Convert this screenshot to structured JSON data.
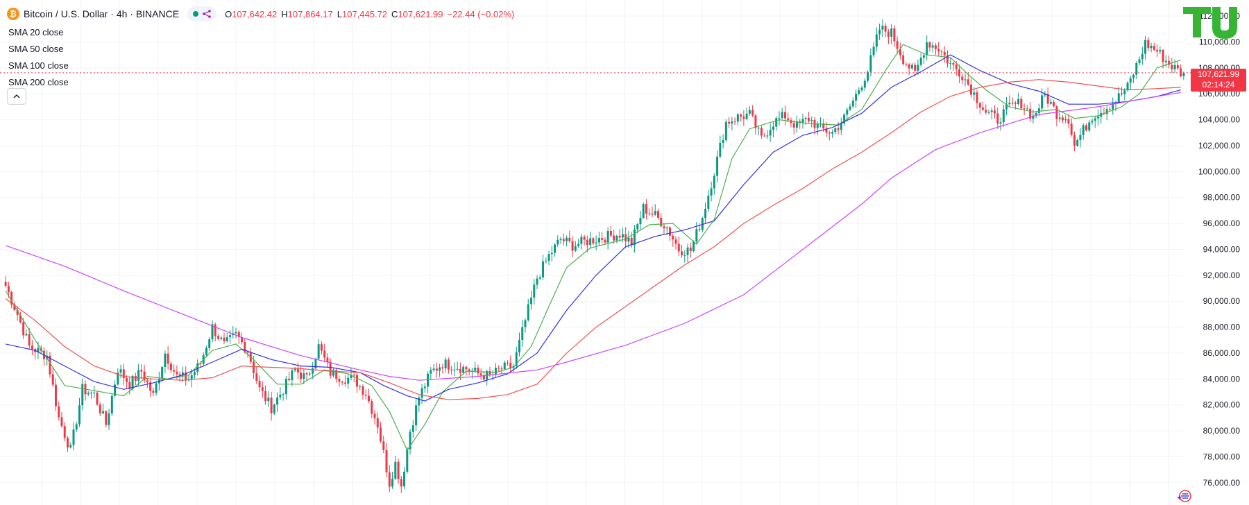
{
  "header": {
    "coin_icon_glyph": "₿",
    "symbol_title": "Bitcoin / U.S. Dollar · 4h · BINANCE",
    "ohlc": [
      {
        "key": "O",
        "value": "107,642.42"
      },
      {
        "key": "H",
        "value": "107,864.17"
      },
      {
        "key": "L",
        "value": "107,445.72"
      },
      {
        "key": "C",
        "value": "107,621.99"
      },
      {
        "key": "",
        "value": "−22.44 (−0.02%)"
      }
    ]
  },
  "indicators": [
    "SMA 20 close",
    "SMA 50 close",
    "SMA 100 close",
    "SMA 200 close"
  ],
  "last_price": {
    "value": "107,621.99",
    "countdown": "02:14:24"
  },
  "colors": {
    "up": "#089981",
    "down": "#f23645",
    "sma20": "#4caf50",
    "sma50": "#3030e8",
    "sma100": "#f05050",
    "sma200": "#cc44ff",
    "grid": "#f0f3fa",
    "logo": "#36b535"
  },
  "chart_data": {
    "type": "candlestick",
    "symbol": "BTCUSD",
    "interval": "4h",
    "y_axis": {
      "ticks": [
        76000,
        78000,
        80000,
        82000,
        84000,
        86000,
        88000,
        90000,
        92000,
        94000,
        96000,
        98000,
        100000,
        102000,
        104000,
        106000,
        108000,
        110000,
        112000
      ],
      "tick_labels": [
        "76,000.00",
        "78,000.00",
        "80,000.00",
        "82,000.00",
        "84,000.00",
        "86,000.00",
        "88,000.00",
        "90,000.00",
        "92,000.00",
        "94,000.00",
        "96,000.00",
        "98,000.00",
        "100,000.00",
        "102,000.00",
        "104,000.00",
        "106,000.00",
        "108,000.00",
        "110,000.00",
        "112,000.00"
      ],
      "range": [
        74600,
        112700
      ]
    },
    "grid": true,
    "close_path_anchors": [
      [
        0,
        91200
      ],
      [
        4,
        89000
      ],
      [
        8,
        86500
      ],
      [
        14,
        85800
      ],
      [
        18,
        81000
      ],
      [
        22,
        78500
      ],
      [
        26,
        83200
      ],
      [
        30,
        82800
      ],
      [
        34,
        80500
      ],
      [
        38,
        84800
      ],
      [
        42,
        83600
      ],
      [
        46,
        84600
      ],
      [
        50,
        82700
      ],
      [
        54,
        86000
      ],
      [
        58,
        84200
      ],
      [
        62,
        84000
      ],
      [
        66,
        85200
      ],
      [
        70,
        88000
      ],
      [
        74,
        86600
      ],
      [
        78,
        87400
      ],
      [
        82,
        86200
      ],
      [
        86,
        83200
      ],
      [
        90,
        81800
      ],
      [
        94,
        83200
      ],
      [
        98,
        84700
      ],
      [
        102,
        84000
      ],
      [
        106,
        86500
      ],
      [
        110,
        84500
      ],
      [
        114,
        84100
      ],
      [
        118,
        84000
      ],
      [
        122,
        82900
      ],
      [
        126,
        80500
      ],
      [
        130,
        76000
      ],
      [
        132,
        77500
      ],
      [
        134,
        75800
      ],
      [
        137,
        80000
      ],
      [
        140,
        82600
      ],
      [
        144,
        84500
      ],
      [
        148,
        85200
      ],
      [
        152,
        85000
      ],
      [
        156,
        84800
      ],
      [
        160,
        84400
      ],
      [
        164,
        84200
      ],
      [
        168,
        84800
      ],
      [
        172,
        85000
      ],
      [
        176,
        88500
      ],
      [
        180,
        91800
      ],
      [
        184,
        93500
      ],
      [
        188,
        94800
      ],
      [
        192,
        94300
      ],
      [
        196,
        94600
      ],
      [
        200,
        94800
      ],
      [
        204,
        95000
      ],
      [
        208,
        95200
      ],
      [
        212,
        94500
      ],
      [
        216,
        97200
      ],
      [
        220,
        96600
      ],
      [
        224,
        95700
      ],
      [
        228,
        94000
      ],
      [
        232,
        93900
      ],
      [
        236,
        96500
      ],
      [
        240,
        100000
      ],
      [
        244,
        103800
      ],
      [
        248,
        104200
      ],
      [
        252,
        104400
      ],
      [
        256,
        102500
      ],
      [
        260,
        103800
      ],
      [
        264,
        104300
      ],
      [
        268,
        103500
      ],
      [
        272,
        104100
      ],
      [
        276,
        103300
      ],
      [
        280,
        103000
      ],
      [
        284,
        104100
      ],
      [
        288,
        105900
      ],
      [
        292,
        107800
      ],
      [
        296,
        111000
      ],
      [
        300,
        110700
      ],
      [
        304,
        108700
      ],
      [
        308,
        107500
      ],
      [
        312,
        110000
      ],
      [
        316,
        109500
      ],
      [
        320,
        108300
      ],
      [
        324,
        107500
      ],
      [
        328,
        106000
      ],
      [
        332,
        104600
      ],
      [
        336,
        104000
      ],
      [
        340,
        105000
      ],
      [
        344,
        105300
      ],
      [
        348,
        104200
      ],
      [
        352,
        105900
      ],
      [
        356,
        104500
      ],
      [
        360,
        104100
      ],
      [
        362,
        102000
      ],
      [
        364,
        102800
      ],
      [
        368,
        104300
      ],
      [
        372,
        104800
      ],
      [
        376,
        105500
      ],
      [
        380,
        106500
      ],
      [
        384,
        108700
      ],
      [
        386,
        109900
      ],
      [
        390,
        109300
      ],
      [
        394,
        108300
      ],
      [
        398,
        107622
      ]
    ],
    "sma20_anchors": [
      [
        0,
        90800
      ],
      [
        10,
        87000
      ],
      [
        20,
        83500
      ],
      [
        30,
        83100
      ],
      [
        40,
        82700
      ],
      [
        48,
        84200
      ],
      [
        55,
        84000
      ],
      [
        62,
        84300
      ],
      [
        70,
        86200
      ],
      [
        78,
        86700
      ],
      [
        84,
        85500
      ],
      [
        92,
        83600
      ],
      [
        100,
        83600
      ],
      [
        108,
        84700
      ],
      [
        116,
        84400
      ],
      [
        124,
        83500
      ],
      [
        130,
        81500
      ],
      [
        136,
        78500
      ],
      [
        142,
        80500
      ],
      [
        148,
        83000
      ],
      [
        156,
        84600
      ],
      [
        166,
        84500
      ],
      [
        172,
        84900
      ],
      [
        178,
        86500
      ],
      [
        184,
        89600
      ],
      [
        190,
        92600
      ],
      [
        198,
        94100
      ],
      [
        210,
        94800
      ],
      [
        218,
        95900
      ],
      [
        226,
        96000
      ],
      [
        234,
        94400
      ],
      [
        240,
        96300
      ],
      [
        246,
        101000
      ],
      [
        252,
        103300
      ],
      [
        262,
        104000
      ],
      [
        272,
        103700
      ],
      [
        282,
        103600
      ],
      [
        290,
        104800
      ],
      [
        298,
        107800
      ],
      [
        304,
        109800
      ],
      [
        312,
        109000
      ],
      [
        320,
        108800
      ],
      [
        326,
        107500
      ],
      [
        332,
        106300
      ],
      [
        340,
        105000
      ],
      [
        348,
        104600
      ],
      [
        356,
        104800
      ],
      [
        362,
        104100
      ],
      [
        370,
        104300
      ],
      [
        378,
        105000
      ],
      [
        384,
        106000
      ],
      [
        390,
        108000
      ],
      [
        398,
        108600
      ]
    ],
    "sma50_anchors": [
      [
        0,
        86700
      ],
      [
        10,
        86200
      ],
      [
        20,
        85000
      ],
      [
        30,
        83800
      ],
      [
        40,
        83200
      ],
      [
        50,
        83700
      ],
      [
        60,
        84300
      ],
      [
        70,
        85300
      ],
      [
        80,
        86300
      ],
      [
        90,
        85500
      ],
      [
        100,
        85000
      ],
      [
        110,
        84900
      ],
      [
        120,
        84500
      ],
      [
        128,
        83500
      ],
      [
        136,
        82700
      ],
      [
        142,
        82300
      ],
      [
        150,
        83200
      ],
      [
        160,
        83700
      ],
      [
        170,
        84400
      ],
      [
        180,
        86000
      ],
      [
        190,
        89300
      ],
      [
        200,
        92000
      ],
      [
        210,
        94200
      ],
      [
        220,
        95000
      ],
      [
        230,
        95500
      ],
      [
        240,
        96200
      ],
      [
        250,
        99000
      ],
      [
        260,
        101500
      ],
      [
        270,
        102800
      ],
      [
        280,
        103400
      ],
      [
        290,
        104500
      ],
      [
        300,
        106500
      ],
      [
        310,
        107700
      ],
      [
        320,
        109000
      ],
      [
        330,
        107800
      ],
      [
        340,
        106800
      ],
      [
        350,
        106200
      ],
      [
        360,
        105200
      ],
      [
        370,
        105200
      ],
      [
        380,
        105400
      ],
      [
        390,
        105800
      ],
      [
        398,
        106300
      ]
    ],
    "sma100_anchors": [
      [
        0,
        90200
      ],
      [
        10,
        88500
      ],
      [
        20,
        86500
      ],
      [
        30,
        85000
      ],
      [
        40,
        84200
      ],
      [
        50,
        84000
      ],
      [
        60,
        83900
      ],
      [
        70,
        84100
      ],
      [
        80,
        85000
      ],
      [
        90,
        84900
      ],
      [
        100,
        84800
      ],
      [
        110,
        84600
      ],
      [
        120,
        84500
      ],
      [
        130,
        83700
      ],
      [
        140,
        82800
      ],
      [
        150,
        82400
      ],
      [
        160,
        82500
      ],
      [
        170,
        82800
      ],
      [
        180,
        83600
      ],
      [
        190,
        86000
      ],
      [
        200,
        88000
      ],
      [
        210,
        89600
      ],
      [
        220,
        91200
      ],
      [
        230,
        92800
      ],
      [
        240,
        94200
      ],
      [
        250,
        96000
      ],
      [
        260,
        97400
      ],
      [
        270,
        98700
      ],
      [
        280,
        100200
      ],
      [
        290,
        101500
      ],
      [
        300,
        103000
      ],
      [
        310,
        104600
      ],
      [
        320,
        105800
      ],
      [
        330,
        106500
      ],
      [
        340,
        106900
      ],
      [
        350,
        107100
      ],
      [
        360,
        106900
      ],
      [
        370,
        106600
      ],
      [
        380,
        106300
      ],
      [
        390,
        106400
      ],
      [
        398,
        106500
      ]
    ],
    "sma200_anchors": [
      [
        0,
        94300
      ],
      [
        20,
        92700
      ],
      [
        40,
        90800
      ],
      [
        60,
        89000
      ],
      [
        80,
        87200
      ],
      [
        100,
        85800
      ],
      [
        120,
        84700
      ],
      [
        130,
        84200
      ],
      [
        140,
        83900
      ],
      [
        160,
        84200
      ],
      [
        180,
        84700
      ],
      [
        190,
        85300
      ],
      [
        210,
        86600
      ],
      [
        230,
        88300
      ],
      [
        250,
        90500
      ],
      [
        270,
        94000
      ],
      [
        290,
        97500
      ],
      [
        300,
        99500
      ],
      [
        315,
        101700
      ],
      [
        330,
        103000
      ],
      [
        350,
        104400
      ],
      [
        370,
        105000
      ],
      [
        385,
        105600
      ],
      [
        398,
        106100
      ]
    ]
  }
}
